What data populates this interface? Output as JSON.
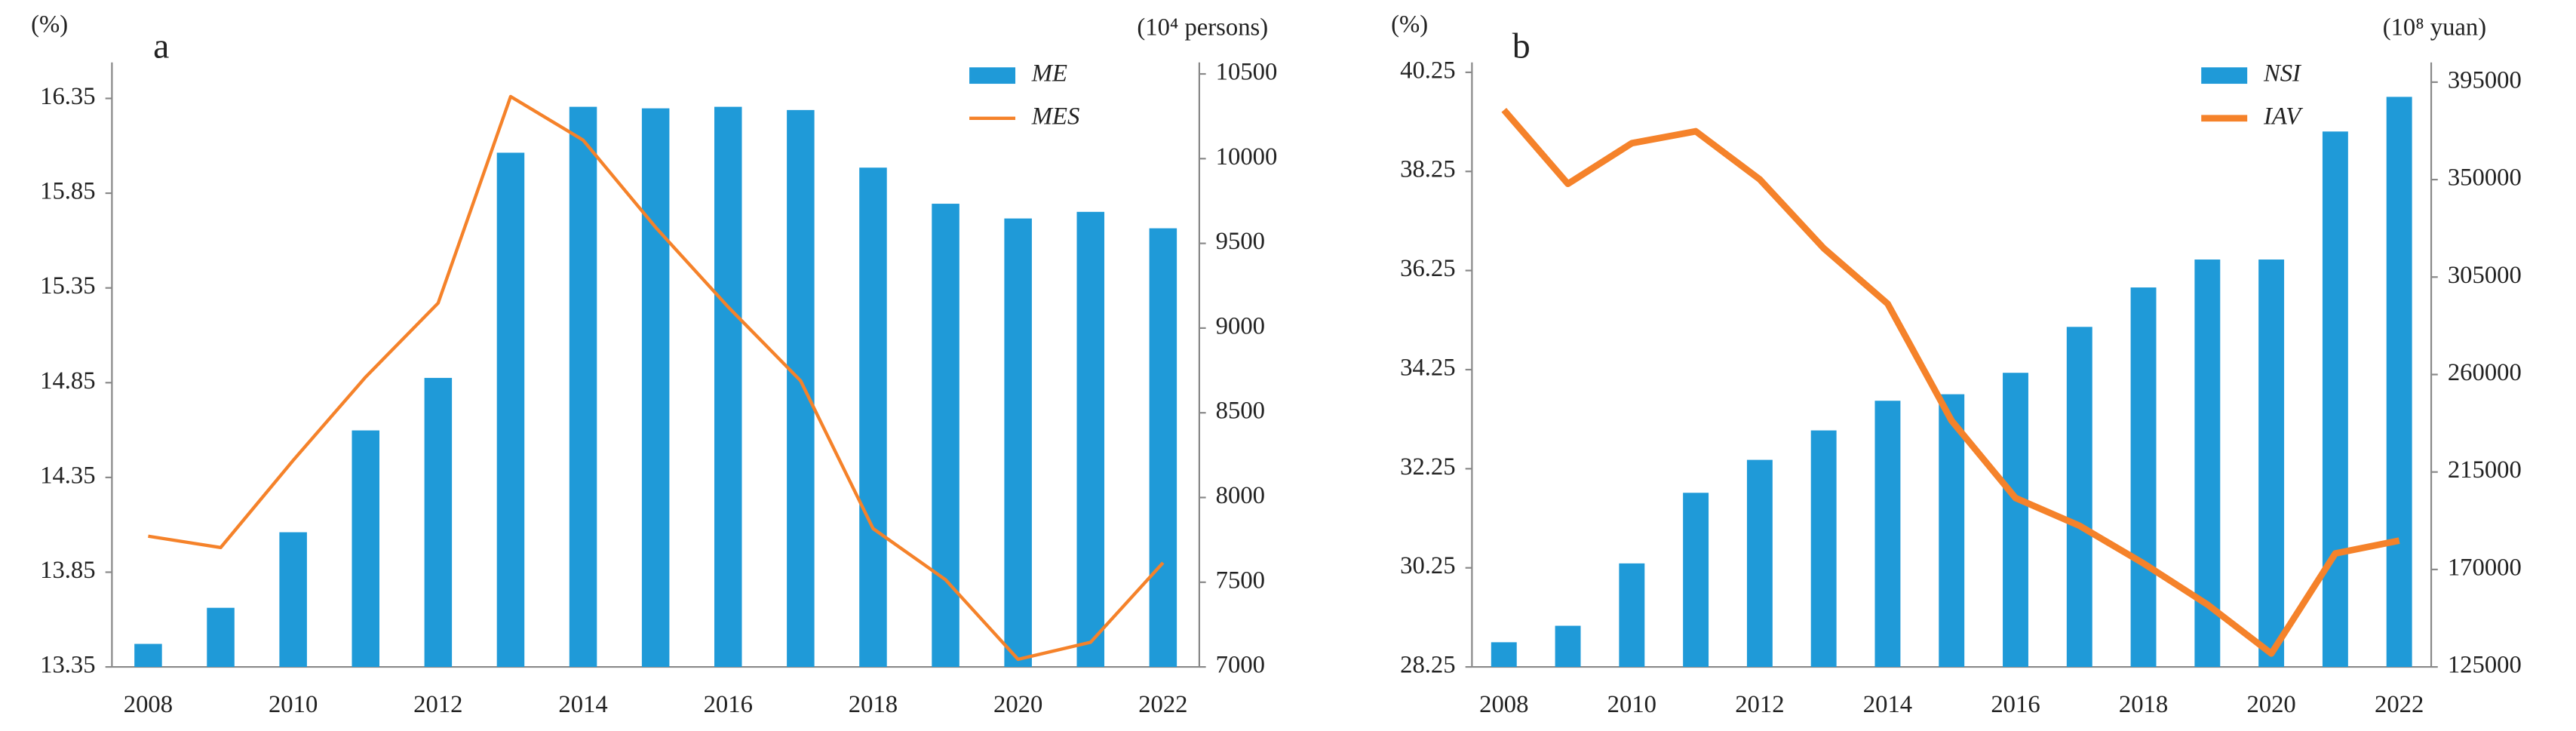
{
  "chart_data": [
    {
      "type": "bar_line",
      "panel_label": "a",
      "y_label": "(%)",
      "y2_label": "(10⁴ persons)",
      "categories": [
        2008,
        null,
        2010,
        null,
        2012,
        null,
        2014,
        null,
        2016,
        null,
        2018,
        null,
        2020,
        null,
        2022
      ],
      "ylim": [
        13.35,
        16.54
      ],
      "yticks": [
        13.35,
        13.85,
        14.35,
        14.85,
        15.35,
        15.85,
        16.35
      ],
      "y2lim": [
        7000,
        10568
      ],
      "y2ticks": [
        7000,
        7500,
        8000,
        8500,
        9000,
        9500,
        10000,
        10500
      ],
      "legend": "upper right",
      "series": [
        {
          "name": "ME",
          "kind": "bar",
          "axis": "y2",
          "color": "#1f9ad8",
          "values": [
            7136,
            7349,
            7795,
            8396,
            8706,
            10035,
            10306,
            10297,
            10306,
            10287,
            9947,
            9734,
            9647,
            9686,
            9589
          ]
        },
        {
          "name": "MES",
          "kind": "line",
          "color": "#f5822a",
          "values": [
            14.04,
            13.98,
            14.44,
            14.88,
            15.27,
            16.36,
            16.13,
            15.67,
            15.25,
            14.86,
            14.08,
            13.81,
            13.39,
            13.48,
            13.9
          ]
        }
      ]
    },
    {
      "type": "bar_line",
      "panel_label": "b",
      "y_label": "(%)",
      "y2_label": "(10⁸ yuan)",
      "categories": [
        2008,
        null,
        2010,
        null,
        2012,
        null,
        2014,
        null,
        2016,
        null,
        2018,
        null,
        2020,
        null,
        2022
      ],
      "ylim": [
        28.25,
        40.45
      ],
      "yticks": [
        28.25,
        30.25,
        32.25,
        34.25,
        36.25,
        38.25,
        40.25
      ],
      "y2lim": [
        125000,
        404100
      ],
      "y2ticks": [
        125000,
        170000,
        215000,
        260000,
        305000,
        350000,
        395000
      ],
      "legend": "upper right",
      "series": [
        {
          "name": "NSI",
          "kind": "bar",
          "axis": "y2",
          "color": "#1f9ad8",
          "values": [
            136400,
            144000,
            172800,
            205400,
            220600,
            234200,
            247900,
            250900,
            260800,
            282000,
            300200,
            313100,
            313100,
            372200,
            388200
          ]
        },
        {
          "name": "IAV",
          "kind": "line",
          "color": "#f5822a",
          "values": [
            39.49,
            38.0,
            38.82,
            39.06,
            38.09,
            36.7,
            35.58,
            33.22,
            31.66,
            31.1,
            30.34,
            29.51,
            28.52,
            30.54,
            30.8
          ]
        }
      ]
    }
  ]
}
